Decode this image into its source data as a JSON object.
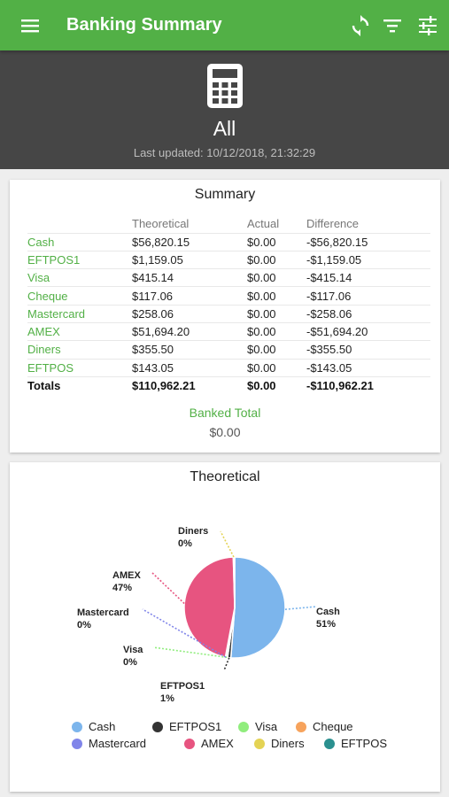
{
  "appbar": {
    "title": "Banking Summary",
    "icons": [
      "menu-icon",
      "refresh-icon",
      "filter-icon",
      "tune-icon"
    ],
    "color": "#52b046"
  },
  "hero": {
    "icon": "calculator-icon",
    "title": "All",
    "last_updated": "Last updated: 10/12/2018, 21:32:29"
  },
  "summary": {
    "title": "Summary",
    "headers": [
      "",
      "Theoretical",
      "Actual",
      "Difference"
    ],
    "rows": [
      [
        "Cash",
        "$56,820.15",
        "$0.00",
        "-$56,820.15"
      ],
      [
        "EFTPOS1",
        "$1,159.05",
        "$0.00",
        "-$1,159.05"
      ],
      [
        "Visa",
        "$415.14",
        "$0.00",
        "-$415.14"
      ],
      [
        "Cheque",
        "$117.06",
        "$0.00",
        "-$117.06"
      ],
      [
        "Mastercard",
        "$258.06",
        "$0.00",
        "-$258.06"
      ],
      [
        "AMEX",
        "$51,694.20",
        "$0.00",
        "-$51,694.20"
      ],
      [
        "Diners",
        "$355.50",
        "$0.00",
        "-$355.50"
      ],
      [
        "EFTPOS",
        "$143.05",
        "$0.00",
        "-$143.05"
      ]
    ],
    "totals": [
      "Totals",
      "$110,962.21",
      "$0.00",
      "-$110,962.21"
    ],
    "banked_label": "Banked Total",
    "banked_value": "$0.00"
  },
  "chart_data": {
    "type": "pie",
    "title": "Theoretical",
    "categories": [
      "Cash",
      "EFTPOS1",
      "Visa",
      "Cheque",
      "Mastercard",
      "AMEX",
      "Diners",
      "EFTPOS"
    ],
    "values": [
      56820.15,
      1159.05,
      415.14,
      117.06,
      258.06,
      51694.2,
      355.5,
      143.05
    ],
    "slice_labels": [
      {
        "name": "Cash",
        "pct": "51%"
      },
      {
        "name": "EFTPOS1",
        "pct": "1%"
      },
      {
        "name": "Visa",
        "pct": "0%"
      },
      {
        "name": "Mastercard",
        "pct": "0%"
      },
      {
        "name": "AMEX",
        "pct": "47%"
      },
      {
        "name": "Diners",
        "pct": "0%"
      }
    ],
    "colors": [
      "#7cb5ec",
      "#333333",
      "#90ed7d",
      "#f7a35c",
      "#8085e9",
      "#e75480",
      "#e4d354",
      "#2b908f"
    ],
    "legend": "bottom"
  }
}
